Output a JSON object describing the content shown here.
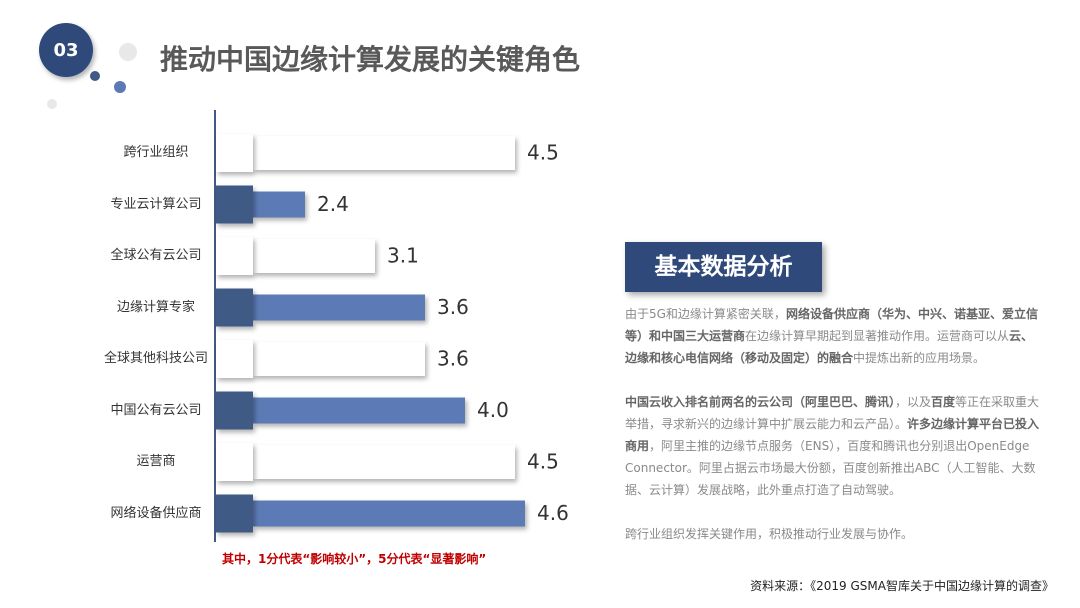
{
  "slide": {
    "number": "03",
    "title": "推动中国边缘计算发展的关键角色",
    "note": "其中，1分代表“影响较小”，5分代表“显著影响”",
    "source": "资料来源：《2019 GSMA智库关于中国边缘计算的调查》"
  },
  "chart_data": {
    "type": "hbar",
    "categories": [
      "跨行业组织",
      "专业云计算公司",
      "全球公有云公司",
      "边缘计算专家",
      "全球其他科技公司",
      "中国公有云公司",
      "运营商",
      "网络设备供应商"
    ],
    "values": [
      4.5,
      2.4,
      3.1,
      3.6,
      3.6,
      4.0,
      4.5,
      4.6
    ],
    "value_labels": [
      "4.5",
      "2.4",
      "3.1",
      "3.6",
      "3.6",
      "4.0",
      "4.5",
      "4.6"
    ],
    "colors": [
      "#ffffff",
      "#5b7ab5",
      "#ffffff",
      "#5b7ab5",
      "#ffffff",
      "#5b7ab5",
      "#ffffff",
      "#5b7ab5"
    ]
  },
  "panel": {
    "heading": "基本数据分析",
    "paragraphs": [
      [
        {
          "text": "由于5G和边缘计算紧密关联，",
          "bold": false
        },
        {
          "text": "网络设备供应商（华为、中兴、诺基亚、爱立信等）和中国三大运营商",
          "bold": true
        },
        {
          "text": "在边缘计算早期起到显著推动作用。运营商可以从",
          "bold": false
        },
        {
          "text": "云、边缘和核心电信网络（移动及固定）的融合",
          "bold": true
        },
        {
          "text": "中提炼出新的应用场景。",
          "bold": false
        }
      ],
      [
        {
          "text": "中国云收入排名前两名的云公司（阿里巴巴、腾讯）",
          "bold": true
        },
        {
          "text": "，以及",
          "bold": false
        },
        {
          "text": "百度",
          "bold": true
        },
        {
          "text": "等正在采取重大举措，寻求新兴的边缘计算中扩展云能力和云产品）。",
          "bold": false
        },
        {
          "text": "许多边缘计算平台已投入商用",
          "bold": true
        },
        {
          "text": "，阿里主推的边缘节点服务（ENS），百度和腾讯也分别退出OpenEdge Connector。阿里占据云市场最大份额，百度创新推出ABC（人工智能、大数据、云计算）发展战略，此外重点打造了自动驾驶。",
          "bold": false
        }
      ],
      [
        {
          "text": "跨行业组织发挥关键作用，积极推动行业发展与协作。",
          "bold": false
        }
      ]
    ]
  }
}
